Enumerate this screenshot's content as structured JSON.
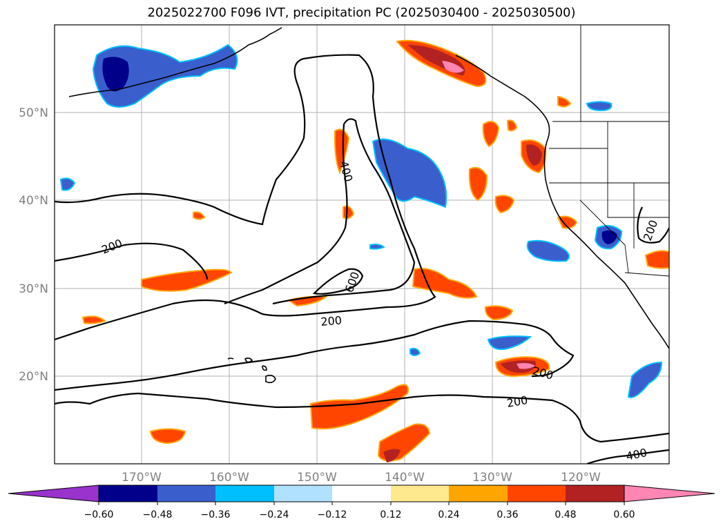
{
  "title": "2025022700 F096 IVT, precipitation PC (2025030400 - 2025030500)",
  "lat_labels": [
    "50°N",
    "40°N",
    "30°N",
    "20°N"
  ],
  "lon_labels": [
    "170°W",
    "160°W",
    "150°W",
    "140°W",
    "130°W",
    "120°W"
  ],
  "contour_labels": [
    "200",
    "400",
    "600",
    "200",
    "200",
    "200",
    "400",
    "200"
  ],
  "colorbar": {
    "ticks": [
      "−0.60",
      "−0.48",
      "−0.36",
      "−0.24",
      "−0.12",
      "0.12",
      "0.24",
      "0.36",
      "0.48",
      "0.60"
    ],
    "colors": [
      "#9933cc",
      "#00008b",
      "#3a5fcd",
      "#00bfff",
      "#b0e2ff",
      "#ffffff",
      "#fee98f",
      "#ffa500",
      "#ff4500",
      "#b22222",
      "#ff85b3"
    ]
  },
  "palette": {
    "dark_blue": "#00008b",
    "mid_blue": "#3a5fcd",
    "cyan": "#00bfff",
    "light_blue": "#b0e2ff",
    "yellow": "#fee98f",
    "orange": "#ffa500",
    "red_orange": "#ff4500",
    "dark_red": "#b22222",
    "pink": "#ff85b3"
  }
}
